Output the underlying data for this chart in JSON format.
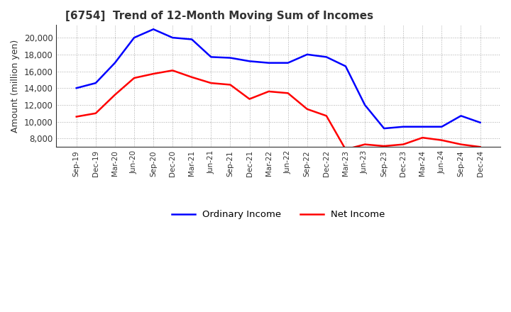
{
  "title": "[6754]  Trend of 12-Month Moving Sum of Incomes",
  "ylabel": "Amount (million yen)",
  "ordinary_income": {
    "label": "Ordinary Income",
    "color": "#0000FF",
    "dates": [
      "Sep-19",
      "Dec-19",
      "Mar-20",
      "Jun-20",
      "Sep-20",
      "Dec-20",
      "Mar-21",
      "Jun-21",
      "Sep-21",
      "Dec-21",
      "Mar-22",
      "Jun-22",
      "Sep-22",
      "Dec-22",
      "Mar-23",
      "Jun-23",
      "Sep-23",
      "Dec-23",
      "Mar-24",
      "Jun-24",
      "Sep-24",
      "Dec-24"
    ],
    "values": [
      14000,
      14600,
      17000,
      20000,
      21000,
      20000,
      19800,
      17700,
      17600,
      17200,
      17000,
      17000,
      18000,
      17700,
      16600,
      12000,
      9200,
      9400,
      9400,
      9400,
      10700,
      9900
    ]
  },
  "net_income": {
    "label": "Net Income",
    "color": "#FF0000",
    "dates": [
      "Sep-19",
      "Dec-19",
      "Mar-20",
      "Jun-20",
      "Sep-20",
      "Dec-20",
      "Mar-21",
      "Jun-21",
      "Sep-21",
      "Dec-21",
      "Mar-22",
      "Jun-22",
      "Sep-22",
      "Dec-22",
      "Mar-23",
      "Jun-23",
      "Sep-23",
      "Dec-23",
      "Mar-24",
      "Jun-24",
      "Sep-24",
      "Dec-24"
    ],
    "values": [
      10600,
      11000,
      13200,
      15200,
      15700,
      16100,
      15300,
      14600,
      14400,
      12700,
      13600,
      13400,
      11500,
      10700,
      6700,
      7300,
      7100,
      7300,
      8100,
      7800,
      7300,
      7000
    ]
  },
  "ylim": [
    7000,
    21500
  ],
  "yticks": [
    8000,
    10000,
    12000,
    14000,
    16000,
    18000,
    20000
  ],
  "background_color": "#FFFFFF",
  "grid_color": "#AAAAAA",
  "title_fontsize": 11,
  "label_fontsize": 9
}
